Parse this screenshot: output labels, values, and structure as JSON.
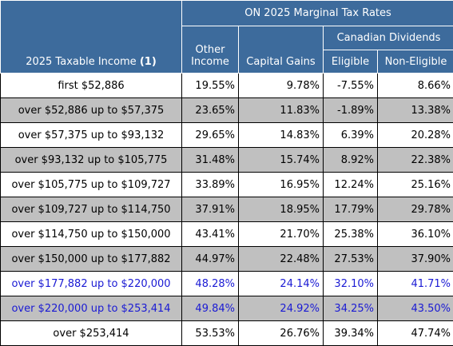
{
  "header": {
    "title": "ON 2025 Marginal Tax Rates",
    "income_label": "2025 Taxable Income",
    "income_note": "(1)",
    "other_income": "Other Income",
    "capital_gains": "Capital Gains",
    "canadian_dividends": "Canadian Dividends",
    "eligible": "Eligible",
    "non_eligible": "Non-Eligible"
  },
  "colors": {
    "header_bg": "#3d6b9c",
    "shade": "#c0c0c0",
    "highlight_text": "#1a1ad4"
  },
  "rows": [
    {
      "income": "first $52,886",
      "other": "19.55%",
      "capital_gains": "9.78%",
      "eligible": "-7.55%",
      "non_eligible": "8.66%"
    },
    {
      "income": "over $52,886 up to $57,375",
      "other": "23.65%",
      "capital_gains": "11.83%",
      "eligible": "-1.89%",
      "non_eligible": "13.38%"
    },
    {
      "income": "over $57,375 up to $93,132",
      "other": "29.65%",
      "capital_gains": "14.83%",
      "eligible": "6.39%",
      "non_eligible": "20.28%"
    },
    {
      "income": "over $93,132 up to $105,775",
      "other": "31.48%",
      "capital_gains": "15.74%",
      "eligible": "8.92%",
      "non_eligible": "22.38%"
    },
    {
      "income": "over $105,775 up to $109,727",
      "other": "33.89%",
      "capital_gains": "16.95%",
      "eligible": "12.24%",
      "non_eligible": "25.16%"
    },
    {
      "income": "over $109,727 up to $114,750",
      "other": "37.91%",
      "capital_gains": "18.95%",
      "eligible": "17.79%",
      "non_eligible": "29.78%"
    },
    {
      "income": "over $114,750 up to $150,000",
      "other": "43.41%",
      "capital_gains": "21.70%",
      "eligible": "25.38%",
      "non_eligible": "36.10%"
    },
    {
      "income": "over $150,000 up to $177,882",
      "other": "44.97%",
      "capital_gains": "22.48%",
      "eligible": "27.53%",
      "non_eligible": "37.90%"
    },
    {
      "income": "over $177,882 up to $220,000",
      "other": "48.28%",
      "capital_gains": "24.14%",
      "eligible": "32.10%",
      "non_eligible": "41.71%"
    },
    {
      "income": "over $220,000 up to $253,414",
      "other": "49.84%",
      "capital_gains": "24.92%",
      "eligible": "34.25%",
      "non_eligible": "43.50%"
    },
    {
      "income": "over $253,414",
      "other": "53.53%",
      "capital_gains": "26.76%",
      "eligible": "39.34%",
      "non_eligible": "47.74%"
    }
  ]
}
